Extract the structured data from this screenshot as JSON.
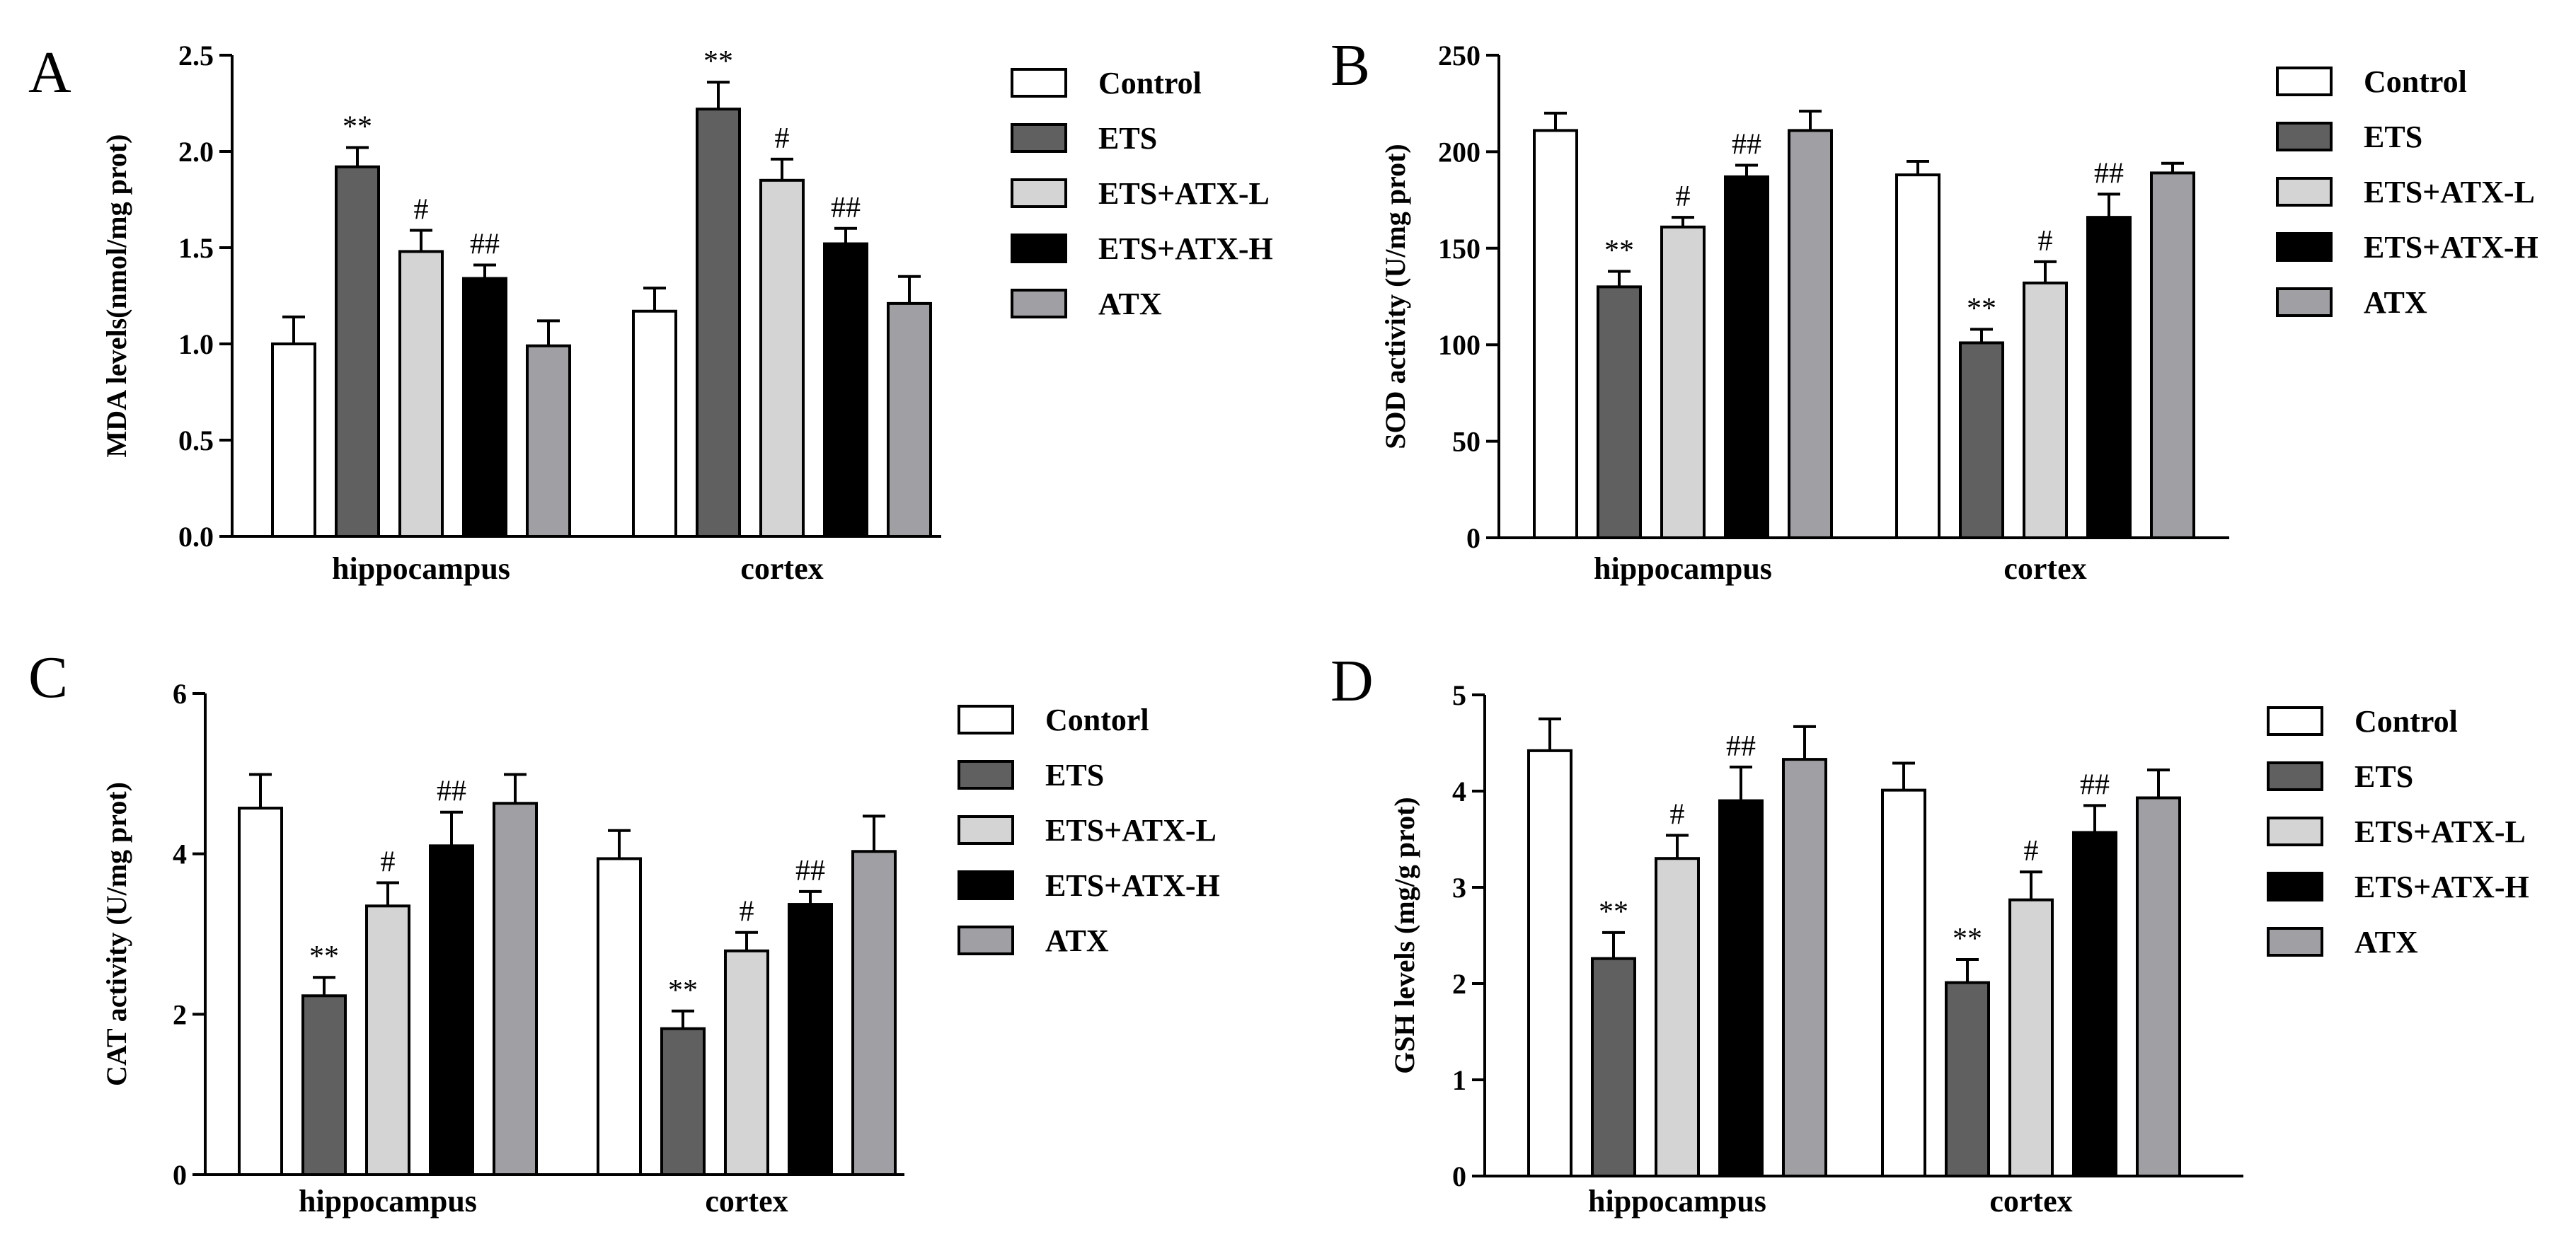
{
  "chart_data": [
    {
      "type": "bar",
      "panel": "A",
      "ylabel": "MDA levels(nmol/mg prot)",
      "ylim": [
        0,
        2.5
      ],
      "yticks": [
        "0.0",
        "0.5",
        "1.0",
        "1.5",
        "2.0",
        "2.5"
      ],
      "categories": [
        "hippocampus",
        "cortex"
      ],
      "series": [
        {
          "name": "Control",
          "color": "#ffffff",
          "values": [
            1.0,
            1.17
          ],
          "errors": [
            0.14,
            0.12
          ],
          "marks": [
            "",
            ""
          ]
        },
        {
          "name": "ETS",
          "color": "#606060",
          "values": [
            1.92,
            2.22
          ],
          "errors": [
            0.1,
            0.14
          ],
          "marks": [
            "**",
            "**"
          ]
        },
        {
          "name": "ETS+ATX-L",
          "color": "#d4d4d4",
          "values": [
            1.48,
            1.85
          ],
          "errors": [
            0.11,
            0.11
          ],
          "marks": [
            "#",
            "#"
          ]
        },
        {
          "name": "ETS+ATX-H",
          "color": "#000000",
          "values": [
            1.34,
            1.52
          ],
          "errors": [
            0.07,
            0.08
          ],
          "marks": [
            "##",
            "##"
          ]
        },
        {
          "name": "ATX",
          "color": "#a0a0a4",
          "values": [
            0.99,
            1.21
          ],
          "errors": [
            0.13,
            0.14
          ],
          "marks": [
            "",
            ""
          ]
        }
      ]
    },
    {
      "type": "bar",
      "panel": "B",
      "ylabel": "SOD activity (U/mg prot)",
      "ylim": [
        0,
        250
      ],
      "yticks": [
        "0",
        "50",
        "100",
        "150",
        "200",
        "250"
      ],
      "categories": [
        "hippocampus",
        "cortex"
      ],
      "series": [
        {
          "name": "Control",
          "color": "#ffffff",
          "values": [
            211,
            188
          ],
          "errors": [
            9,
            7
          ],
          "marks": [
            "",
            ""
          ]
        },
        {
          "name": "ETS",
          "color": "#606060",
          "values": [
            130,
            101
          ],
          "errors": [
            8,
            7
          ],
          "marks": [
            "**",
            "**"
          ]
        },
        {
          "name": "ETS+ATX-L",
          "color": "#d4d4d4",
          "values": [
            161,
            132
          ],
          "errors": [
            5,
            11
          ],
          "marks": [
            "#",
            "#"
          ]
        },
        {
          "name": "ETS+ATX-H",
          "color": "#000000",
          "values": [
            187,
            166
          ],
          "errors": [
            6,
            12
          ],
          "marks": [
            "##",
            "##"
          ]
        },
        {
          "name": "ATX",
          "color": "#a0a0a4",
          "values": [
            211,
            189
          ],
          "errors": [
            10,
            5
          ],
          "marks": [
            "",
            ""
          ]
        }
      ]
    },
    {
      "type": "bar",
      "panel": "C",
      "ylabel": "CAT activity (U/mg prot)",
      "ylim": [
        0,
        6
      ],
      "yticks": [
        "0",
        "2",
        "4",
        "6"
      ],
      "categories": [
        "hippocampus",
        "cortex"
      ],
      "series": [
        {
          "name": "Contorl",
          "color": "#ffffff",
          "values": [
            4.57,
            3.94
          ],
          "errors": [
            0.42,
            0.35
          ],
          "marks": [
            "",
            ""
          ]
        },
        {
          "name": "ETS",
          "color": "#606060",
          "values": [
            2.23,
            1.82
          ],
          "errors": [
            0.23,
            0.22
          ],
          "marks": [
            "**",
            "**"
          ]
        },
        {
          "name": "ETS+ATX-L",
          "color": "#d4d4d4",
          "values": [
            3.35,
            2.79
          ],
          "errors": [
            0.29,
            0.23
          ],
          "marks": [
            "#",
            "#"
          ]
        },
        {
          "name": "ETS+ATX-H",
          "color": "#000000",
          "values": [
            4.1,
            3.37
          ],
          "errors": [
            0.42,
            0.16
          ],
          "marks": [
            "##",
            "##"
          ]
        },
        {
          "name": "ATX",
          "color": "#a0a0a4",
          "values": [
            4.63,
            4.03
          ],
          "errors": [
            0.36,
            0.44
          ],
          "marks": [
            "",
            ""
          ]
        }
      ]
    },
    {
      "type": "bar",
      "panel": "D",
      "ylabel": "GSH levels (mg/g prot)",
      "ylim": [
        0,
        5
      ],
      "yticks": [
        "0",
        "1",
        "2",
        "3",
        "4",
        "5"
      ],
      "categories": [
        "hippocampus",
        "cortex"
      ],
      "series": [
        {
          "name": "Control",
          "color": "#ffffff",
          "values": [
            4.42,
            4.01
          ],
          "errors": [
            0.33,
            0.28
          ],
          "marks": [
            "",
            ""
          ]
        },
        {
          "name": "ETS",
          "color": "#606060",
          "values": [
            2.26,
            2.01
          ],
          "errors": [
            0.27,
            0.24
          ],
          "marks": [
            "**",
            "**"
          ]
        },
        {
          "name": "ETS+ATX-L",
          "color": "#d4d4d4",
          "values": [
            3.3,
            2.87
          ],
          "errors": [
            0.24,
            0.29
          ],
          "marks": [
            "#",
            "#"
          ]
        },
        {
          "name": "ETS+ATX-H",
          "color": "#000000",
          "values": [
            3.9,
            3.57
          ],
          "errors": [
            0.35,
            0.28
          ],
          "marks": [
            "##",
            "##"
          ]
        },
        {
          "name": "ATX",
          "color": "#a0a0a4",
          "values": [
            4.33,
            3.93
          ],
          "errors": [
            0.34,
            0.29
          ],
          "marks": [
            "",
            ""
          ]
        }
      ]
    }
  ]
}
